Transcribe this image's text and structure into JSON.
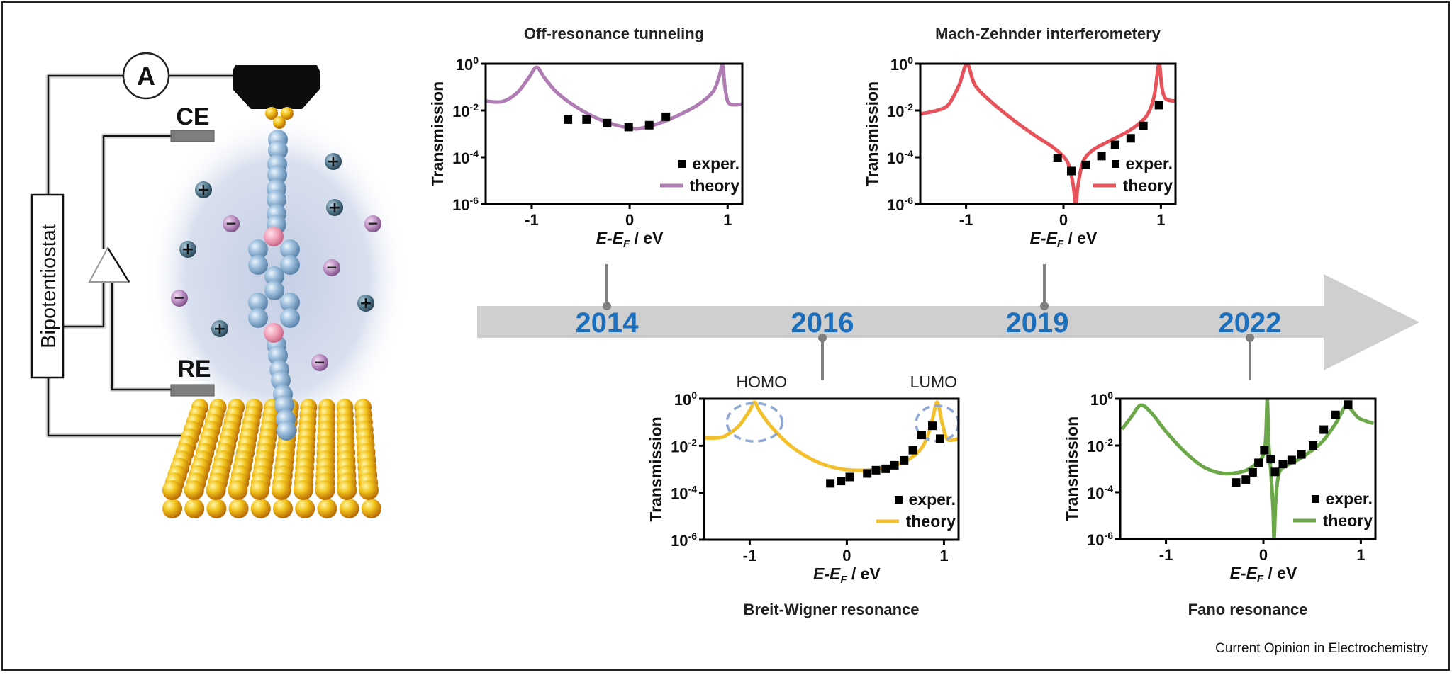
{
  "figure": {
    "credit": "Current Opinion in Electrochemistry"
  },
  "setup": {
    "ammeter_label": "A",
    "ce_label": "CE",
    "re_label": "RE",
    "bipotentiostat_label": "Bipotentiostat",
    "ion_plus_symbol": "+",
    "ion_minus_symbol": "−"
  },
  "timeline": {
    "years": [
      {
        "label": "2014",
        "chart": "Off-resonance tunneling"
      },
      {
        "label": "2016",
        "chart": "Breit-Wigner resonance"
      },
      {
        "label": "2019",
        "chart": "Mach-Zehnder interferometery"
      },
      {
        "label": "2022",
        "chart": "Fano resonance"
      }
    ]
  },
  "chart_data": [
    {
      "type": "line",
      "title": "Off-resonance tunneling",
      "year": "2014",
      "ylabel": "Transmission",
      "xlabel": {
        "var": "E-E",
        "sub": "F",
        "unit": " / eV"
      },
      "xlim": [
        -1.47,
        1.15
      ],
      "xticks": [
        -1,
        0,
        1
      ],
      "ylim_log10": [
        -6,
        0
      ],
      "yticks": {
        "base": "10",
        "exponents": [
          "0",
          "-2",
          "-4",
          "-6"
        ]
      },
      "legend": {
        "exper": "exper.",
        "theory": "theory",
        "placement": "bottom-right"
      },
      "color": "#b07cb4",
      "series": [
        {
          "name": "exper.",
          "kind": "scatter",
          "log10_T": [
            [
              -0.63,
              -2.39
            ],
            [
              -0.44,
              -2.39
            ],
            [
              -0.23,
              -2.54
            ],
            [
              -0.01,
              -2.71
            ],
            [
              0.2,
              -2.63
            ],
            [
              0.37,
              -2.27
            ]
          ]
        },
        {
          "name": "theory",
          "kind": "line",
          "log10_T": [
            [
              -1.47,
              -1.6
            ],
            [
              -1.3,
              -1.62
            ],
            [
              -1.15,
              -1.25
            ],
            [
              -1.03,
              -0.6
            ],
            [
              -0.95,
              -0.15
            ],
            [
              -0.87,
              -0.6
            ],
            [
              -0.75,
              -1.2
            ],
            [
              -0.6,
              -1.7
            ],
            [
              -0.4,
              -2.2
            ],
            [
              -0.2,
              -2.55
            ],
            [
              0,
              -2.75
            ],
            [
              0.1,
              -2.77
            ],
            [
              0.3,
              -2.55
            ],
            [
              0.5,
              -2.2
            ],
            [
              0.7,
              -1.75
            ],
            [
              0.85,
              -1.2
            ],
            [
              0.91,
              -0.6
            ],
            [
              0.95,
              -0.05
            ],
            [
              0.97,
              -0.9
            ],
            [
              1.0,
              -1.6
            ],
            [
              1.05,
              -1.75
            ],
            [
              1.15,
              -1.73
            ]
          ]
        }
      ]
    },
    {
      "type": "line",
      "title": "Mach-Zehnder interferometery",
      "year": "2019",
      "ylabel": "Transmission",
      "xlabel": {
        "var": "E-E",
        "sub": "F",
        "unit": " / eV"
      },
      "xlim": [
        -1.47,
        1.15
      ],
      "xticks": [
        -1,
        0,
        1
      ],
      "ylim_log10": [
        -6,
        0
      ],
      "yticks": {
        "base": "10",
        "exponents": [
          "0",
          "-2",
          "-4",
          "-6"
        ]
      },
      "legend": {
        "exper": "exper.",
        "theory": "theory",
        "placement": "bottom-right"
      },
      "color": "#e8525a",
      "series": [
        {
          "name": "exper.",
          "kind": "scatter",
          "log10_T": [
            [
              -0.06,
              -4.03
            ],
            [
              0.08,
              -4.59
            ],
            [
              0.23,
              -4.33
            ],
            [
              0.39,
              -3.95
            ],
            [
              0.53,
              -3.47
            ],
            [
              0.69,
              -3.19
            ],
            [
              0.82,
              -2.66
            ],
            [
              0.98,
              -1.77
            ]
          ]
        },
        {
          "name": "theory",
          "kind": "line",
          "log10_T": [
            [
              -1.47,
              -2.15
            ],
            [
              -1.3,
              -2.0
            ],
            [
              -1.18,
              -1.75
            ],
            [
              -1.07,
              -0.9
            ],
            [
              -0.99,
              0
            ],
            [
              -0.91,
              -0.9
            ],
            [
              -0.75,
              -1.6
            ],
            [
              -0.5,
              -2.45
            ],
            [
              -0.3,
              -3.05
            ],
            [
              -0.1,
              -3.6
            ],
            [
              0.04,
              -4.2
            ],
            [
              0.1,
              -5.2
            ],
            [
              0.125,
              -6
            ],
            [
              0.15,
              -5.2
            ],
            [
              0.2,
              -4.2
            ],
            [
              0.3,
              -3.7
            ],
            [
              0.45,
              -3.35
            ],
            [
              0.68,
              -2.85
            ],
            [
              0.85,
              -2.25
            ],
            [
              0.93,
              -1.4
            ],
            [
              0.98,
              0
            ],
            [
              1.01,
              -1.0
            ],
            [
              1.05,
              -1.5
            ],
            [
              1.15,
              -1.6
            ]
          ]
        }
      ]
    },
    {
      "type": "line",
      "title": "Breit-Wigner resonance",
      "year": "2016",
      "ylabel": "Transmission",
      "xlabel": {
        "var": "E-E",
        "sub": "F",
        "unit": " / eV"
      },
      "xlim": [
        -1.47,
        1.15
      ],
      "xticks": [
        -1,
        0,
        1
      ],
      "ylim_log10": [
        -6,
        0
      ],
      "yticks": {
        "base": "10",
        "exponents": [
          "0",
          "-2",
          "-4",
          "-6"
        ]
      },
      "legend": {
        "exper": "exper.",
        "theory": "theory",
        "placement": "bottom-right"
      },
      "color": "#f3c02c",
      "annotations": [
        {
          "text": "HOMO",
          "E": -0.95,
          "log10_T": -1.0
        },
        {
          "text": "LUMO",
          "E": 0.93,
          "log10_T": -1.05
        }
      ],
      "annotation_color": "#8ea8d6",
      "series": [
        {
          "name": "exper.",
          "kind": "scatter",
          "log10_T": [
            [
              -0.17,
              -3.6
            ],
            [
              -0.06,
              -3.5
            ],
            [
              0.03,
              -3.33
            ],
            [
              0.21,
              -3.18
            ],
            [
              0.3,
              -3.04
            ],
            [
              0.4,
              -2.98
            ],
            [
              0.49,
              -2.83
            ],
            [
              0.59,
              -2.62
            ],
            [
              0.68,
              -2.19
            ],
            [
              0.77,
              -1.54
            ],
            [
              0.88,
              -1.15
            ],
            [
              0.96,
              -1.7
            ]
          ]
        },
        {
          "name": "theory",
          "kind": "line",
          "log10_T": [
            [
              -1.47,
              -1.67
            ],
            [
              -1.3,
              -1.65
            ],
            [
              -1.2,
              -1.45
            ],
            [
              -1.1,
              -1.1
            ],
            [
              -1.0,
              -0.5
            ],
            [
              -0.95,
              -0.15
            ],
            [
              -0.9,
              -0.5
            ],
            [
              -0.79,
              -1.13
            ],
            [
              -0.58,
              -2.0
            ],
            [
              -0.34,
              -2.62
            ],
            [
              -0.11,
              -2.95
            ],
            [
              0.13,
              -3.05
            ],
            [
              0.37,
              -2.96
            ],
            [
              0.6,
              -2.66
            ],
            [
              0.75,
              -2.2
            ],
            [
              0.83,
              -1.6
            ],
            [
              0.88,
              -0.9
            ],
            [
              0.93,
              -0.15
            ],
            [
              0.98,
              -1.0
            ],
            [
              1.03,
              -1.7
            ],
            [
              1.1,
              -1.75
            ],
            [
              1.15,
              -1.7
            ]
          ]
        }
      ]
    },
    {
      "type": "line",
      "title": "Fano resonance",
      "year": "2022",
      "ylabel": "Transmission",
      "xlabel": {
        "var": "E-E",
        "sub": "F",
        "unit": " / eV"
      },
      "xlim": [
        -1.47,
        1.15
      ],
      "xticks": [
        -1,
        0,
        1
      ],
      "ylim_log10": [
        -6,
        0
      ],
      "yticks": {
        "base": "10",
        "exponents": [
          "0",
          "-2",
          "-4",
          "-6"
        ]
      },
      "legend": {
        "exper": "exper.",
        "theory": "theory",
        "placement": "bottom-right"
      },
      "color": "#6ca84a",
      "series": [
        {
          "name": "exper.",
          "kind": "scatter",
          "log10_T": [
            [
              -0.28,
              -3.58
            ],
            [
              -0.18,
              -3.46
            ],
            [
              -0.11,
              -3.15
            ],
            [
              -0.05,
              -2.74
            ],
            [
              0.01,
              -2.2
            ],
            [
              0.075,
              -2.58
            ],
            [
              0.12,
              -3.13
            ],
            [
              0.2,
              -2.79
            ],
            [
              0.29,
              -2.62
            ],
            [
              0.39,
              -2.38
            ],
            [
              0.51,
              -2.0
            ],
            [
              0.62,
              -1.32
            ],
            [
              0.74,
              -0.69
            ],
            [
              0.87,
              -0.25
            ]
          ]
        },
        {
          "name": "theory",
          "kind": "line",
          "log10_T": [
            [
              -1.45,
              -1.3
            ],
            [
              -1.36,
              -0.8
            ],
            [
              -1.26,
              -0.28
            ],
            [
              -1.15,
              -0.6
            ],
            [
              -1.0,
              -1.4
            ],
            [
              -0.8,
              -2.3
            ],
            [
              -0.6,
              -2.95
            ],
            [
              -0.4,
              -3.2
            ],
            [
              -0.2,
              -3.1
            ],
            [
              -0.08,
              -2.8
            ],
            [
              0.0,
              -2.4
            ],
            [
              0.025,
              -1.6
            ],
            [
              0.04,
              0
            ],
            [
              0.055,
              -1.9
            ],
            [
              0.08,
              -3.3
            ],
            [
              0.1,
              -4.8
            ],
            [
              0.11,
              -6
            ],
            [
              0.125,
              -4.5
            ],
            [
              0.15,
              -3.4
            ],
            [
              0.2,
              -2.95
            ],
            [
              0.4,
              -2.5
            ],
            [
              0.6,
              -1.85
            ],
            [
              0.75,
              -1.0
            ],
            [
              0.85,
              -0.25
            ],
            [
              0.9,
              -0.45
            ],
            [
              0.97,
              -0.8
            ],
            [
              1.05,
              -0.95
            ],
            [
              1.13,
              -1.05
            ]
          ]
        }
      ]
    }
  ]
}
